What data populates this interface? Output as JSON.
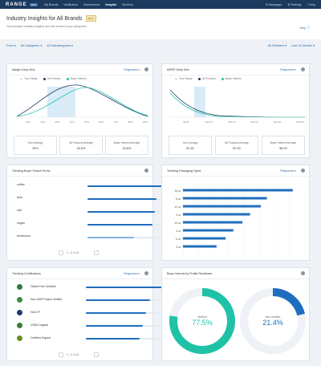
{
  "nav": {
    "logo": "RANGE",
    "logo_badge": "PRO",
    "links": [
      "My Brands",
      "Verification",
      "Submissions",
      "Insights",
      "Services"
    ],
    "active_index": 3,
    "right": [
      "Messages",
      "Settings",
      "Help"
    ]
  },
  "header": {
    "title": "Industry Insights for All Brands",
    "badge": "BETA",
    "subtitle": "Get exclusive industry insights and see trends in your categories",
    "help": "Help"
  },
  "filters": {
    "left": [
      "Food",
      "All Categories",
      "All Subcategories"
    ],
    "right": [
      "All Retailers",
      "Last 12 Months"
    ]
  },
  "colors": {
    "navy": "#1c3a5e",
    "blue": "#1f6dbf",
    "teal": "#1fc2a7",
    "light_blue": "#cfe6f5"
  },
  "margin_card": {
    "title": "Margin Deep Dive",
    "dropdown": "Responses",
    "legend": [
      "Your Range",
      "All Products",
      "Buyer Interest"
    ],
    "x_ticks": [
      "20%",
      "30%",
      "35%",
      "40%",
      "50%",
      "60%",
      "70%",
      "80%",
      "90%"
    ],
    "stats": [
      {
        "label": "Your Average",
        "value": "34%"
      },
      {
        "label": "All Products Average",
        "value": "40.5%"
      },
      {
        "label": "Buyer Interest Average",
        "value": "40.8%"
      }
    ]
  },
  "msrp_card": {
    "title": "MSRP Deep Dive",
    "dropdown": "Responses",
    "legend": [
      "Your Range",
      "All Products",
      "Buyer Interest"
    ],
    "x_ticks": [
      "$5.00",
      "$10.00",
      "$15.00",
      "$20.00",
      "$25.00",
      "$30.00"
    ],
    "stats": [
      {
        "label": "Your Average",
        "value": "$7.60"
      },
      {
        "label": "All Products Average",
        "value": "$7.50"
      },
      {
        "label": "Buyer Interest Average",
        "value": "$6.20"
      }
    ]
  },
  "search_card": {
    "title": "Trending Buyer Search Terms",
    "terms": [
      {
        "term": "coffee",
        "pct": 1.0
      },
      {
        "term": "keto",
        "pct": 0.9
      },
      {
        "term": "cbd",
        "pct": 0.88
      },
      {
        "term": "vegan",
        "pct": 0.84
      },
      {
        "term": "kombucha",
        "pct": 0.6
      }
    ],
    "pager": "1 – 5 of 15"
  },
  "packaging_card": {
    "title": "Trending Packaging Types",
    "dropdown": "Responses",
    "chart_data": {
      "type": "bar",
      "categories": [
        "16 oz",
        "8 oz",
        "12 oz",
        "2 oz",
        "10 oz",
        "4 oz",
        "6 oz",
        "3 oz"
      ],
      "values": [
        72,
        55,
        51,
        44,
        39,
        33,
        28,
        22
      ],
      "xlim": [
        0,
        80
      ]
    }
  },
  "cert_card": {
    "title": "Trending Certifications",
    "dropdown": "Responses",
    "items": [
      {
        "label": "Gluten Free Certified",
        "pct": 1.0,
        "color": "#2d7a3a"
      },
      {
        "label": "Non-GMO Project Verified",
        "pct": 0.78,
        "color": "#3a8c3f"
      },
      {
        "label": "HACCP",
        "pct": 0.74,
        "color": "#1b3d6e"
      },
      {
        "label": "USDA Organic",
        "pct": 0.7,
        "color": "#3b7f34"
      },
      {
        "label": "Certified Organic",
        "pct": 0.66,
        "color": "#6b8e23"
      }
    ],
    "pager": "1 – 5 of 15"
  },
  "readiness_card": {
    "title": "Buyer Interest by Profile Readiness",
    "chart_data": [
      {
        "type": "pie",
        "label": "Verified",
        "value": 77.5,
        "display": "77.5%",
        "color": "#1fc2a7"
      },
      {
        "type": "pie",
        "label": "Non-Verified",
        "value": 21.4,
        "display": "21.4%",
        "color": "#1f6dbf"
      }
    ]
  }
}
